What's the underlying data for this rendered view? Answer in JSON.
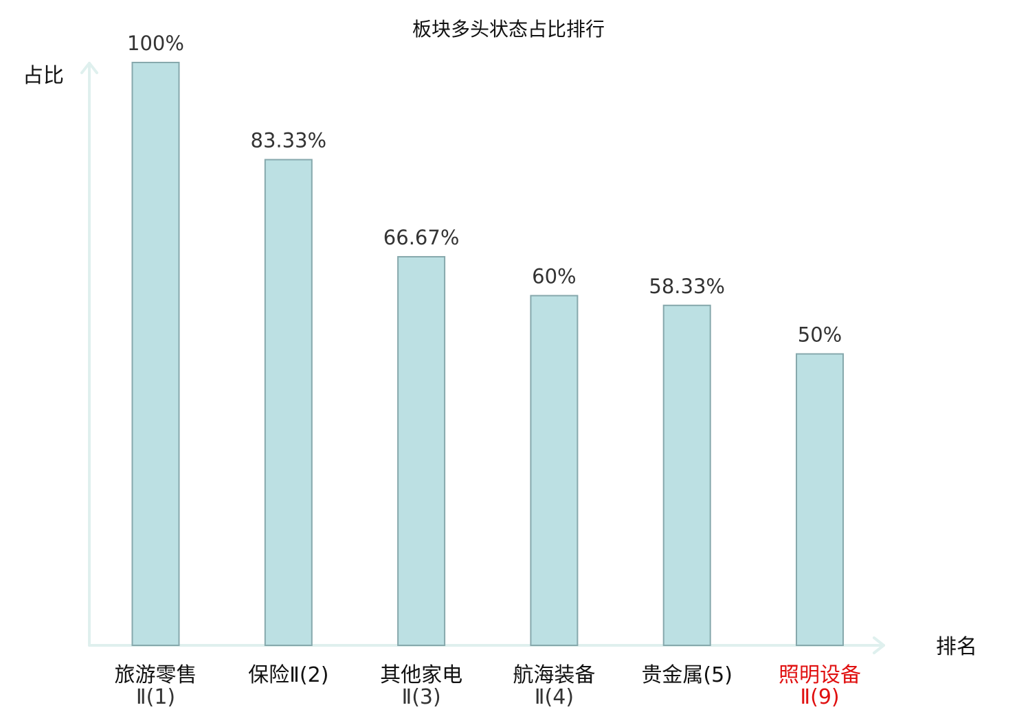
{
  "chart_data": {
    "type": "bar",
    "title": "板块多头状态占比排行",
    "ylabel": "占比",
    "xlabel": "排名",
    "ylim": [
      0,
      100
    ],
    "categories": [
      {
        "line1": "旅游零售",
        "line2": "Ⅱ(1)"
      },
      {
        "line1": "保险Ⅱ(2)",
        "line2": ""
      },
      {
        "line1": "其他家电",
        "line2": "Ⅱ(3)"
      },
      {
        "line1": "航海装备",
        "line2": "Ⅱ(4)"
      },
      {
        "line1": "贵金属(5)",
        "line2": ""
      },
      {
        "line1": "照明设备",
        "line2": "Ⅱ(9)"
      }
    ],
    "values": [
      100,
      83.33,
      66.67,
      60,
      58.33,
      50
    ],
    "value_labels": [
      "100%",
      "83.33%",
      "66.67%",
      "60%",
      "58.33%",
      "50%"
    ],
    "highlight_index": 5,
    "colors": {
      "bar_fill": "#bce0e3",
      "bar_stroke": "#86a8ac",
      "axis": "#dff0ee",
      "highlight": "#e01010"
    },
    "grid": false
  }
}
